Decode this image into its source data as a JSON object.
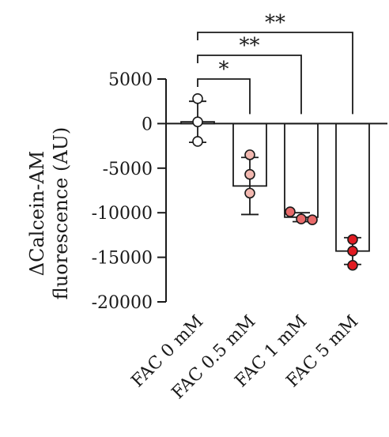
{
  "chart_data": {
    "type": "bar",
    "ylabel_line1": "ΔCalcein-AM",
    "ylabel_line2": "fluorescence (AU)",
    "categories": [
      "FAC 0 mM",
      "FAC 0.5 mM",
      "FAC 1 mM",
      "FAC 5 mM"
    ],
    "means": [
      200,
      -7000,
      -10500,
      -14300
    ],
    "errors": [
      2300,
      3200,
      500,
      1500
    ],
    "points": [
      [
        2800,
        200,
        -2000
      ],
      [
        -3500,
        -5700,
        -7800
      ],
      [
        -9900,
        -10700,
        -10800
      ],
      [
        -13000,
        -14300,
        -15900
      ]
    ],
    "point_colors": [
      "#ffffff",
      "#f2b8b0",
      "#e86a6a",
      "#e01b22"
    ],
    "ylim": [
      -20000,
      5000
    ],
    "yticks": [
      5000,
      0,
      -5000,
      -10000,
      -15000,
      -20000
    ],
    "ytick_labels": [
      "5000",
      "0",
      "-5000",
      "-10000",
      "-15000",
      "-20000"
    ],
    "significance": [
      {
        "from": 0,
        "to": 1,
        "label": "*"
      },
      {
        "from": 0,
        "to": 2,
        "label": "**"
      },
      {
        "from": 0,
        "to": 3,
        "label": "**"
      }
    ]
  }
}
